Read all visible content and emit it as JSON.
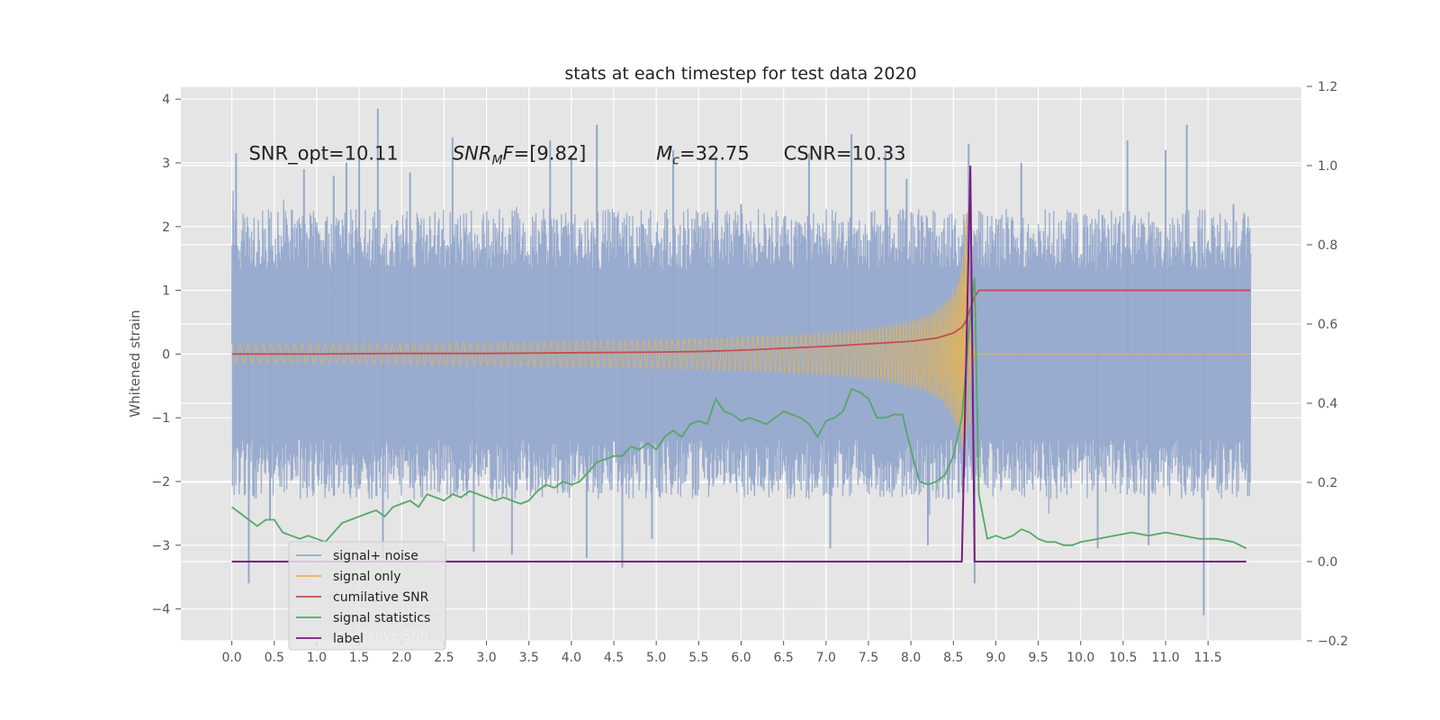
{
  "chart_data": {
    "type": "line",
    "title": "stats at each timestep for test data 2020",
    "ylabel": "Whitened strain",
    "ylabel_right": "",
    "xlim": [
      -0.6,
      12.6
    ],
    "ylim": [
      -4.5,
      4.2
    ],
    "ylim_right": [
      -0.2,
      1.2
    ],
    "x_ticks": [
      0.0,
      0.5,
      1.0,
      1.5,
      2.0,
      2.5,
      3.0,
      3.5,
      4.0,
      4.5,
      5.0,
      5.5,
      6.0,
      6.5,
      7.0,
      7.5,
      8.0,
      8.5,
      9.0,
      9.5,
      10.0,
      10.5,
      11.0,
      11.5
    ],
    "x_tick_labels": [
      "0.0",
      "0.5",
      "1.0",
      "1.5",
      "2.0",
      "2.5",
      "3.0",
      "3.5",
      "4.0",
      "4.5",
      "5.0",
      "5.5",
      "6.0",
      "6.5",
      "7.0",
      "7.5",
      "8.0",
      "8.5",
      "9.0",
      "9.5",
      "10.0",
      "10.5",
      "11.0",
      "11.5"
    ],
    "y_ticks": [
      -4,
      -3,
      -2,
      -1,
      0,
      1,
      2,
      3,
      4
    ],
    "y_tick_labels": [
      "−4",
      "−3",
      "−2",
      "−1",
      "0",
      "1",
      "2",
      "3",
      "4"
    ],
    "y_right_ticks": [
      -0.2,
      0.0,
      0.2,
      0.4,
      0.6,
      0.8,
      1.0,
      1.2
    ],
    "y_right_tick_labels": [
      "−0.2",
      "0.0",
      "0.2",
      "0.4",
      "0.6",
      "0.8",
      "1.0",
      "1.2"
    ],
    "grid": true,
    "legend_placement": "lower-left",
    "annotations": [
      {
        "id": "snr-opt",
        "text": "SNR_opt=10.11",
        "x": 0.2,
        "y": 3.05
      },
      {
        "id": "snr-mf",
        "text": "SNRMF=[9.82]",
        "x": 2.6,
        "y": 3.05
      },
      {
        "id": "mc",
        "text": "Mc=32.75",
        "x": 5.0,
        "y": 3.05
      },
      {
        "id": "csnr",
        "text": "CSNR=10.33",
        "x": 6.5,
        "y": 3.05
      }
    ],
    "series": [
      {
        "name": "signal+ noise",
        "color": "#95a8cc",
        "axis": "left",
        "style": "noise",
        "x_range": [
          0.0,
          12.0
        ],
        "typical_range": [
          -1.9,
          1.9
        ],
        "x_peaks": [
          0.05,
          0.2,
          0.45,
          0.85,
          1.2,
          1.35,
          1.5,
          1.72,
          1.78,
          2.1,
          2.6,
          2.85,
          3.3,
          3.75,
          4.0,
          4.18,
          4.3,
          4.6,
          4.95,
          5.2,
          5.7,
          6.0,
          6.8,
          7.05,
          7.3,
          7.7,
          7.95,
          8.2,
          8.68,
          8.75,
          9.3,
          10.2,
          10.55,
          10.8,
          11.0,
          11.25,
          11.45,
          11.8
        ],
        "y_peaks": [
          3.15,
          -3.6,
          -2.6,
          2.9,
          2.8,
          3.0,
          3.1,
          3.85,
          -3.2,
          2.85,
          3.4,
          -3.1,
          -3.15,
          3.35,
          3.1,
          -3.2,
          3.6,
          -3.35,
          -2.9,
          3.2,
          3.1,
          2.35,
          3.15,
          -3.05,
          3.45,
          3.2,
          2.75,
          -3.0,
          3.3,
          -3.6,
          3.0,
          -3.05,
          3.35,
          -3.0,
          3.2,
          3.6,
          -4.1,
          2.35
        ]
      },
      {
        "name": "signal only",
        "color": "#e9b44c",
        "axis": "left",
        "style": "chirp",
        "x_range": [
          0.0,
          12.0
        ],
        "merger_x": 8.68,
        "peak_amplitude": 2.2
      },
      {
        "name": "cumilative SNR",
        "color": "#c44e52",
        "axis": "left",
        "style": "line",
        "x": [
          0.0,
          1.0,
          2.0,
          3.0,
          4.0,
          5.0,
          5.5,
          6.0,
          6.5,
          7.0,
          7.5,
          8.0,
          8.3,
          8.5,
          8.6,
          8.65,
          8.7,
          8.75,
          8.8,
          9.0,
          10.0,
          11.0,
          12.0
        ],
        "y": [
          0.0,
          0.0,
          0.01,
          0.01,
          0.02,
          0.03,
          0.04,
          0.06,
          0.09,
          0.12,
          0.16,
          0.2,
          0.25,
          0.33,
          0.42,
          0.52,
          0.72,
          0.9,
          1.0,
          1.0,
          1.0,
          1.0,
          1.0
        ]
      },
      {
        "name": "signal statistics",
        "color": "#55a868",
        "axis": "left",
        "style": "line",
        "x": [
          0.0,
          0.1,
          0.2,
          0.3,
          0.4,
          0.5,
          0.6,
          0.7,
          0.8,
          0.9,
          1.0,
          1.1,
          1.2,
          1.3,
          1.4,
          1.5,
          1.6,
          1.7,
          1.8,
          1.9,
          2.0,
          2.1,
          2.2,
          2.3,
          2.4,
          2.5,
          2.6,
          2.7,
          2.8,
          2.9,
          3.0,
          3.1,
          3.2,
          3.3,
          3.4,
          3.5,
          3.6,
          3.7,
          3.8,
          3.9,
          4.0,
          4.1,
          4.2,
          4.3,
          4.4,
          4.5,
          4.6,
          4.7,
          4.8,
          4.9,
          5.0,
          5.1,
          5.2,
          5.3,
          5.4,
          5.5,
          5.6,
          5.7,
          5.8,
          5.9,
          6.0,
          6.1,
          6.2,
          6.3,
          6.4,
          6.5,
          6.6,
          6.7,
          6.8,
          6.9,
          7.0,
          7.1,
          7.2,
          7.3,
          7.4,
          7.5,
          7.6,
          7.7,
          7.8,
          7.9,
          8.0,
          8.1,
          8.2,
          8.3,
          8.4,
          8.5,
          8.6,
          8.65,
          8.7,
          8.75,
          8.8,
          8.9,
          9.0,
          9.1,
          9.2,
          9.3,
          9.4,
          9.5,
          9.6,
          9.7,
          9.8,
          9.9,
          10.0,
          10.2,
          10.4,
          10.6,
          10.8,
          11.0,
          11.2,
          11.4,
          11.6,
          11.8,
          11.95
        ],
        "y": [
          -2.4,
          -2.5,
          -2.6,
          -2.7,
          -2.6,
          -2.6,
          -2.8,
          -2.85,
          -2.9,
          -2.85,
          -2.9,
          -2.95,
          -2.8,
          -2.65,
          -2.6,
          -2.55,
          -2.5,
          -2.45,
          -2.55,
          -2.4,
          -2.35,
          -2.3,
          -2.4,
          -2.2,
          -2.25,
          -2.3,
          -2.2,
          -2.25,
          -2.15,
          -2.2,
          -2.25,
          -2.3,
          -2.25,
          -2.3,
          -2.35,
          -2.3,
          -2.15,
          -2.05,
          -2.1,
          -2.0,
          -2.05,
          -2.0,
          -1.85,
          -1.7,
          -1.65,
          -1.6,
          -1.6,
          -1.45,
          -1.5,
          -1.4,
          -1.5,
          -1.3,
          -1.2,
          -1.3,
          -1.1,
          -1.05,
          -1.1,
          -0.7,
          -0.9,
          -0.95,
          -1.05,
          -1.0,
          -1.05,
          -1.1,
          -1.0,
          -0.9,
          -0.95,
          -1.0,
          -1.1,
          -1.3,
          -1.05,
          -1.0,
          -0.9,
          -0.55,
          -0.6,
          -0.7,
          -1.0,
          -1.0,
          -0.95,
          -0.95,
          -1.5,
          -2.0,
          -2.05,
          -2.0,
          -1.9,
          -1.6,
          -1.0,
          -0.2,
          0.6,
          1.2,
          -2.2,
          -2.9,
          -2.85,
          -2.9,
          -2.85,
          -2.75,
          -2.8,
          -2.9,
          -2.95,
          -2.95,
          -3.0,
          -3.0,
          -2.95,
          -2.9,
          -2.85,
          -2.8,
          -2.85,
          -2.8,
          -2.85,
          -2.9,
          -2.9,
          -2.95,
          -3.05
        ]
      },
      {
        "name": "label",
        "color": "#7b1b7e",
        "axis": "right",
        "style": "line",
        "x": [
          0.0,
          8.6,
          8.65,
          8.7,
          8.75,
          8.8,
          11.95
        ],
        "y": [
          0.0,
          0.0,
          0.5,
          1.0,
          0.0,
          0.0,
          0.0
        ]
      }
    ],
    "legend": {
      "entries": [
        "signal+ noise",
        "signal only",
        "cumilative SNR",
        "signal statistics",
        "label"
      ],
      "overlap_text": "cumilative SNR"
    }
  }
}
